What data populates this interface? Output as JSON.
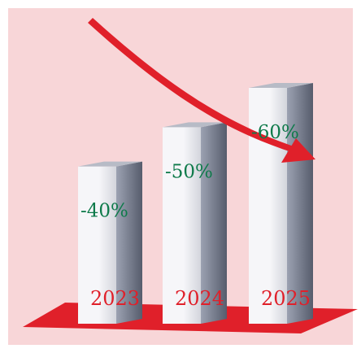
{
  "chart_data": {
    "type": "bar",
    "categories": [
      "2023",
      "2024",
      "2025"
    ],
    "values": [
      -40,
      -50,
      -60
    ],
    "value_labels": [
      "-40%",
      "-50%",
      "-60%"
    ],
    "title": "",
    "xlabel": "",
    "ylabel": "",
    "ylim": [
      0,
      -70
    ],
    "grid": false,
    "legend": "none",
    "trend_arrow": "downward"
  },
  "colors": {
    "background": "#f8d6d8",
    "floor": "#e0202a",
    "arrow": "#e0202a",
    "value_label": "#0e7a4a",
    "year_label": "#e0202a",
    "bar_front_light": "#f6f6f9",
    "bar_front_dark": "#d3d5dc",
    "bar_side_light": "#9ca2b2",
    "bar_side_dark": "#565c6c",
    "bar_top": "#b7bbc6"
  }
}
